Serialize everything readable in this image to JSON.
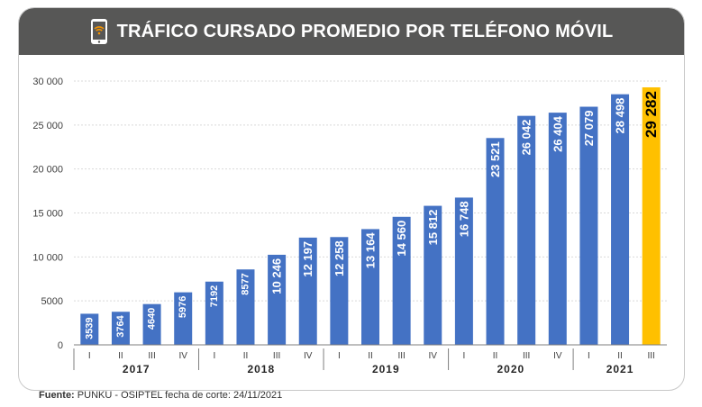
{
  "header": {
    "title": "TRÁFICO CURSADO PROMEDIO POR TELÉFONO MÓVIL",
    "icon": "smartphone-wifi-icon"
  },
  "colors": {
    "header_bg": "#575756",
    "bar": "#4472c4",
    "highlight_bar": "#ffc000",
    "bar_label": "#ffffff",
    "highlight_label": "#000000"
  },
  "chart_data": {
    "type": "bar",
    "title": "TRÁFICO CURSADO PROMEDIO POR TELÉFONO MÓVIL",
    "ylim": [
      0,
      30000
    ],
    "yticks": [
      0,
      5000,
      10000,
      15000,
      20000,
      25000,
      30000
    ],
    "ytick_labels": [
      "0",
      "5000",
      "10 000",
      "15 000",
      "20 000",
      "25 000",
      "30 000"
    ],
    "grid": true,
    "categories": [
      "I",
      "II",
      "III",
      "IV",
      "I",
      "II",
      "III",
      "IV",
      "I",
      "II",
      "III",
      "IV",
      "I",
      "II",
      "III",
      "IV",
      "I",
      "II",
      "III"
    ],
    "years": [
      {
        "label": "2017",
        "count": 4
      },
      {
        "label": "2018",
        "count": 4
      },
      {
        "label": "2019",
        "count": 4
      },
      {
        "label": "2020",
        "count": 4
      },
      {
        "label": "2021",
        "count": 3
      }
    ],
    "values": [
      3539,
      3764,
      4640,
      5976,
      7192,
      8577,
      10246,
      12197,
      12258,
      13164,
      14560,
      15812,
      16748,
      23521,
      26042,
      26404,
      27079,
      28498,
      29282
    ],
    "value_labels": [
      "3539",
      "3764",
      "4640",
      "5976",
      "7192",
      "8577",
      "10 246",
      "12 197",
      "12 258",
      "13 164",
      "14 560",
      "15 812",
      "16 748",
      "23 521",
      "26 042",
      "26 404",
      "27 079",
      "28 498",
      "29 282"
    ],
    "highlight_index": 18
  },
  "source": {
    "label": "Fuente:",
    "text": " PUNKU - OSIPTEL fecha de corte: 24/11/2021"
  }
}
